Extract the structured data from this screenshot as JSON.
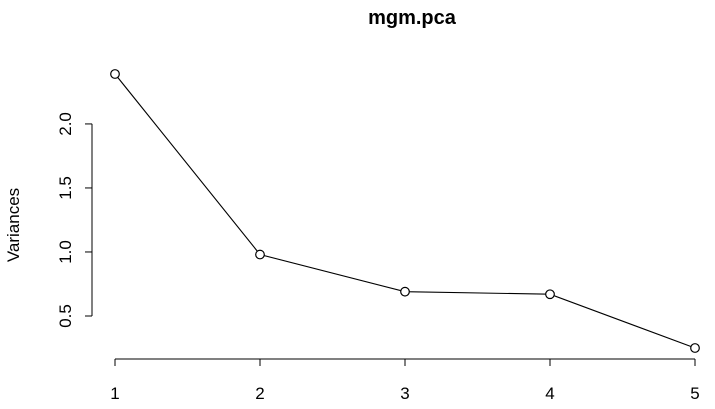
{
  "chart_data": {
    "type": "line",
    "title": "mgm.pca",
    "xlabel": "",
    "ylabel": "Variances",
    "x": [
      1,
      2,
      3,
      4,
      5
    ],
    "series": [
      {
        "values": [
          2.39,
          0.98,
          0.69,
          0.67,
          0.25
        ]
      }
    ],
    "xlim": [
      1,
      5
    ],
    "ylim": [
      0.25,
      2.39
    ],
    "x_ticks": [
      "1",
      "2",
      "3",
      "4",
      "5"
    ],
    "y_ticks": [
      "0.5",
      "1.0",
      "1.5",
      "2.0"
    ],
    "grid": false,
    "marker": "open-circle",
    "colors": {
      "line": "#000000",
      "marker_fill": "#ffffff",
      "background": "#ffffff"
    }
  }
}
